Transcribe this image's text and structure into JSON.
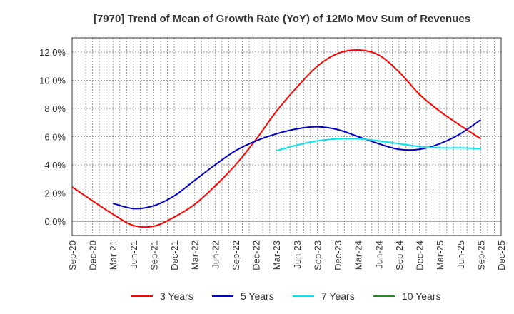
{
  "chart_data": {
    "type": "line",
    "title": "[7970]  Trend of Mean of Growth Rate (YoY) of 12Mo Mov Sum of Revenues",
    "xlabel": "",
    "ylabel": "",
    "ylim": [
      -1.0,
      13.0
    ],
    "yticks": [
      0,
      2,
      4,
      6,
      8,
      10,
      12
    ],
    "ytick_labels": [
      "0.0%",
      "2.0%",
      "4.0%",
      "6.0%",
      "8.0%",
      "10.0%",
      "12.0%"
    ],
    "x": [
      "Sep-20",
      "Dec-20",
      "Mar-21",
      "Jun-21",
      "Sep-21",
      "Dec-21",
      "Mar-22",
      "Jun-22",
      "Sep-22",
      "Dec-22",
      "Mar-23",
      "Jun-23",
      "Sep-23",
      "Dec-23",
      "Mar-24",
      "Jun-24",
      "Sep-24",
      "Dec-24",
      "Mar-25",
      "Jun-25",
      "Sep-25",
      "Dec-25"
    ],
    "grid": true,
    "legend_position": "bottom",
    "series": [
      {
        "name": "3 Years",
        "color": "#ff0000",
        "values": [
          2.43,
          1.45,
          0.5,
          -0.3,
          -0.35,
          0.3,
          1.2,
          2.5,
          4.0,
          5.8,
          7.8,
          9.5,
          11.0,
          11.9,
          12.15,
          11.8,
          10.6,
          9.0,
          7.8,
          6.8,
          5.85,
          null
        ]
      },
      {
        "name": "5 Years",
        "color": "#0000cc",
        "values": [
          null,
          null,
          1.27,
          0.9,
          1.1,
          1.8,
          2.9,
          4.0,
          5.0,
          5.7,
          6.2,
          6.55,
          6.7,
          6.5,
          6.0,
          5.5,
          5.1,
          5.1,
          5.5,
          6.2,
          7.2,
          null
        ]
      },
      {
        "name": "7 Years",
        "color": "#00e5ee",
        "values": [
          null,
          null,
          null,
          null,
          null,
          null,
          null,
          null,
          null,
          null,
          5.0,
          5.4,
          5.7,
          5.85,
          5.85,
          5.7,
          5.5,
          5.3,
          5.2,
          5.2,
          5.15,
          null
        ]
      },
      {
        "name": "10 Years",
        "color": "#228b22",
        "values": [
          null,
          null,
          null,
          null,
          null,
          null,
          null,
          null,
          null,
          null,
          null,
          null,
          null,
          null,
          null,
          null,
          null,
          null,
          null,
          null,
          null,
          null
        ]
      }
    ]
  }
}
